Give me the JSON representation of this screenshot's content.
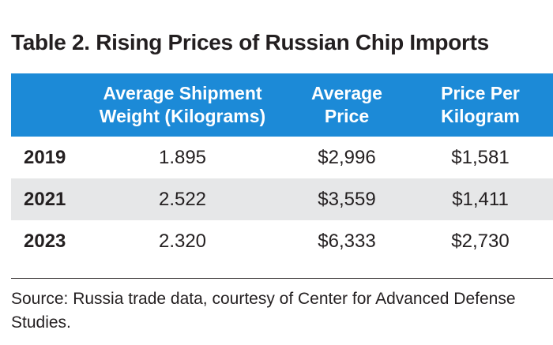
{
  "title": "Table 2. Rising Prices of Russian Chip Imports",
  "table": {
    "headers": [
      {
        "line1": "",
        "line2": ""
      },
      {
        "line1": "Average Shipment",
        "line2": "Weight (Kilograms)"
      },
      {
        "line1": "Average",
        "line2": "Price"
      },
      {
        "line1": "Price Per",
        "line2": "Kilogram"
      }
    ],
    "rows": [
      {
        "year": "2019",
        "weight": "1.895",
        "avg_price": "$2,996",
        "price_per_kg": "$1,581"
      },
      {
        "year": "2021",
        "weight": "2.522",
        "avg_price": "$3,559",
        "price_per_kg": "$1,411"
      },
      {
        "year": "2023",
        "weight": "2.320",
        "avg_price": "$6,333",
        "price_per_kg": "$2,730"
      }
    ]
  },
  "source": "Source: Russia trade data, courtesy of Center for Advanced Defense Studies.",
  "colors": {
    "header_bg": "#1c8ad7",
    "shaded_row": "#e6e7e8",
    "text": "#231f20"
  }
}
